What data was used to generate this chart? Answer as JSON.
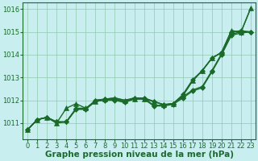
{
  "title": "Graphe pression niveau de la mer (hPa)",
  "bg_color": "#c8eef0",
  "plot_bg_color": "#c8eef0",
  "grid_color": "#90c8b0",
  "line_color": "#1a6b2a",
  "ylim": [
    1010.3,
    1016.3
  ],
  "xlim": [
    -0.5,
    23.5
  ],
  "yticks": [
    1011,
    1012,
    1013,
    1014,
    1015,
    1016
  ],
  "xticks": [
    0,
    1,
    2,
    3,
    4,
    5,
    6,
    7,
    8,
    9,
    10,
    11,
    12,
    13,
    14,
    15,
    16,
    17,
    18,
    19,
    20,
    21,
    22,
    23
  ],
  "series": [
    {
      "y": [
        1010.7,
        1011.15,
        1011.25,
        1011.0,
        1011.65,
        1011.85,
        1011.65,
        1011.95,
        1012.05,
        1012.1,
        1012.0,
        1012.05,
        1012.05,
        1011.95,
        1011.8,
        1011.85,
        1012.2,
        1012.85,
        1013.3,
        1013.85,
        1014.1,
        1015.05,
        1015.0,
        1016.05
      ],
      "marker": "^",
      "markersize": 4,
      "linewidth": 1.0
    },
    {
      "y": [
        1010.7,
        1011.15,
        1011.25,
        1011.0,
        1011.05,
        1011.65,
        1011.65,
        1011.95,
        1012.05,
        1012.1,
        1012.0,
        1012.1,
        1012.1,
        1011.95,
        1011.8,
        1011.85,
        1012.2,
        1012.85,
        1013.3,
        1013.85,
        1014.1,
        1015.05,
        1015.0,
        1016.05
      ],
      "marker": null,
      "markersize": 0,
      "linewidth": 1.0
    },
    {
      "y": [
        1010.7,
        1011.15,
        1011.25,
        1011.05,
        1011.05,
        1011.62,
        1011.62,
        1012.0,
        1012.05,
        1012.05,
        1011.95,
        1012.1,
        1012.1,
        1011.95,
        1011.82,
        1011.85,
        1012.25,
        1012.9,
        1013.3,
        1013.85,
        1014.1,
        1015.0,
        1015.05,
        1015.0
      ],
      "marker": "D",
      "markersize": 3,
      "linewidth": 1.0
    },
    {
      "y": [
        1010.7,
        1011.15,
        1011.25,
        1011.05,
        1011.05,
        1011.62,
        1011.62,
        1012.0,
        1012.05,
        1012.05,
        1011.95,
        1012.1,
        1012.1,
        1011.78,
        1011.78,
        1011.85,
        1012.15,
        1012.45,
        1012.6,
        1013.3,
        1014.05,
        1014.9,
        1015.0,
        1015.0
      ],
      "marker": "D",
      "markersize": 3,
      "linewidth": 1.0
    },
    {
      "y": [
        1010.7,
        1011.15,
        1011.25,
        1011.05,
        1011.05,
        1011.6,
        1011.6,
        1011.95,
        1012.0,
        1012.0,
        1011.9,
        1012.05,
        1012.05,
        1011.75,
        1011.75,
        1011.82,
        1012.1,
        1012.4,
        1012.55,
        1013.25,
        1014.0,
        1014.85,
        1014.95,
        1015.0
      ],
      "marker": "D",
      "markersize": 3,
      "linewidth": 1.0
    }
  ],
  "tick_fontsize": 6.0,
  "label_fontsize": 7.5,
  "label_bold": true
}
